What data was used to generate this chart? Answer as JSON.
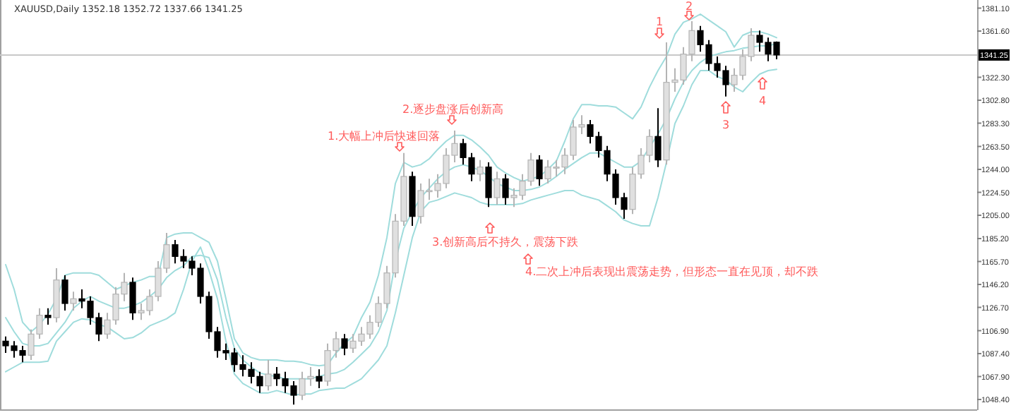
{
  "chart_data": {
    "type": "candlestick",
    "title": "XAUUSD,Daily  1352.18 1352.72 1337.66 1341.25",
    "tick_labels": "y",
    "ylim": [
      1040,
      1388
    ],
    "yticks": [
      {
        "value": 1381.1,
        "label": "1381.10"
      },
      {
        "value": 1361.6,
        "label": "1361.60"
      },
      {
        "value": 1322.3,
        "label": "1322.30"
      },
      {
        "value": 1302.8,
        "label": "1302.80"
      },
      {
        "value": 1283.3,
        "label": "1283.30"
      },
      {
        "value": 1263.5,
        "label": "1263.50"
      },
      {
        "value": 1244.0,
        "label": "1244.00"
      },
      {
        "value": 1224.5,
        "label": "1224.50"
      },
      {
        "value": 1205.0,
        "label": "1205.00"
      },
      {
        "value": 1185.2,
        "label": "1185.20"
      },
      {
        "value": 1165.7,
        "label": "1165.70"
      },
      {
        "value": 1146.2,
        "label": "1146.20"
      },
      {
        "value": 1126.7,
        "label": "1126.70"
      },
      {
        "value": 1106.9,
        "label": "1106.90"
      },
      {
        "value": 1087.4,
        "label": "1087.40"
      },
      {
        "value": 1067.9,
        "label": "1067.90"
      },
      {
        "value": 1048.4,
        "label": "1048.40"
      }
    ],
    "ref_lines": [
      {
        "axis": "y",
        "value": 1341.25,
        "label": "1341.25",
        "color": "#c8c8c8"
      }
    ],
    "categories": [
      null,
      null,
      null,
      null,
      null,
      null,
      null,
      null,
      null,
      null,
      null,
      null,
      null,
      null,
      null,
      null,
      null,
      null,
      null,
      null,
      null,
      null,
      null,
      null,
      null,
      null,
      null,
      null,
      null,
      null,
      null,
      null,
      null,
      null,
      null,
      null,
      null,
      null,
      null,
      null,
      null,
      null,
      null,
      null,
      null,
      null,
      null,
      null,
      null,
      null,
      null,
      null,
      null,
      null,
      null,
      null,
      null,
      null,
      null,
      null,
      null,
      null,
      null,
      null,
      null,
      null,
      null,
      null,
      null,
      null,
      null,
      null,
      null,
      null,
      null,
      null,
      null,
      null,
      null,
      null,
      null,
      null,
      null,
      null,
      null,
      null,
      null,
      null,
      null,
      null,
      null,
      null
    ],
    "ohlc": [
      [
        1098,
        1102,
        1088,
        1094
      ],
      [
        1094,
        1098,
        1084,
        1090
      ],
      [
        1090,
        1094,
        1080,
        1086
      ],
      [
        1086,
        1108,
        1082,
        1104
      ],
      [
        1104,
        1126,
        1100,
        1120
      ],
      [
        1120,
        1126,
        1112,
        1118
      ],
      [
        1118,
        1160,
        1114,
        1150
      ],
      [
        1150,
        1154,
        1124,
        1130
      ],
      [
        1130,
        1140,
        1124,
        1134
      ],
      [
        1134,
        1142,
        1126,
        1132
      ],
      [
        1132,
        1136,
        1112,
        1118
      ],
      [
        1118,
        1122,
        1098,
        1104
      ],
      [
        1104,
        1122,
        1100,
        1116
      ],
      [
        1116,
        1144,
        1112,
        1138
      ],
      [
        1138,
        1156,
        1132,
        1148
      ],
      [
        1148,
        1152,
        1116,
        1122
      ],
      [
        1122,
        1130,
        1116,
        1124
      ],
      [
        1124,
        1142,
        1120,
        1136
      ],
      [
        1136,
        1166,
        1132,
        1160
      ],
      [
        1160,
        1190,
        1156,
        1180
      ],
      [
        1180,
        1184,
        1164,
        1170
      ],
      [
        1170,
        1176,
        1160,
        1166
      ],
      [
        1166,
        1170,
        1154,
        1160
      ],
      [
        1160,
        1164,
        1130,
        1136
      ],
      [
        1136,
        1140,
        1100,
        1106
      ],
      [
        1106,
        1110,
        1084,
        1090
      ],
      [
        1090,
        1096,
        1082,
        1088
      ],
      [
        1088,
        1092,
        1072,
        1078
      ],
      [
        1078,
        1086,
        1068,
        1074
      ],
      [
        1074,
        1080,
        1062,
        1068
      ],
      [
        1068,
        1072,
        1054,
        1060
      ],
      [
        1060,
        1082,
        1056,
        1070
      ],
      [
        1070,
        1076,
        1060,
        1066
      ],
      [
        1066,
        1072,
        1054,
        1060
      ],
      [
        1060,
        1064,
        1044,
        1052
      ],
      [
        1052,
        1072,
        1048,
        1066
      ],
      [
        1066,
        1076,
        1060,
        1068
      ],
      [
        1068,
        1074,
        1058,
        1064
      ],
      [
        1064,
        1096,
        1060,
        1090
      ],
      [
        1090,
        1106,
        1084,
        1100
      ],
      [
        1100,
        1104,
        1086,
        1092
      ],
      [
        1092,
        1104,
        1088,
        1098
      ],
      [
        1098,
        1110,
        1094,
        1104
      ],
      [
        1104,
        1120,
        1100,
        1114
      ],
      [
        1114,
        1136,
        1110,
        1130
      ],
      [
        1130,
        1162,
        1126,
        1156
      ],
      [
        1156,
        1206,
        1152,
        1200
      ],
      [
        1200,
        1258,
        1196,
        1238
      ],
      [
        1238,
        1242,
        1196,
        1204
      ],
      [
        1204,
        1232,
        1198,
        1226
      ],
      [
        1226,
        1236,
        1218,
        1226
      ],
      [
        1226,
        1240,
        1220,
        1232
      ],
      [
        1232,
        1262,
        1228,
        1256
      ],
      [
        1256,
        1277,
        1250,
        1266
      ],
      [
        1266,
        1270,
        1248,
        1254
      ],
      [
        1254,
        1258,
        1234,
        1240
      ],
      [
        1240,
        1252,
        1234,
        1246
      ],
      [
        1246,
        1250,
        1212,
        1220
      ],
      [
        1220,
        1242,
        1214,
        1236
      ],
      [
        1236,
        1240,
        1214,
        1220
      ],
      [
        1220,
        1228,
        1212,
        1222
      ],
      [
        1222,
        1240,
        1218,
        1234
      ],
      [
        1234,
        1258,
        1230,
        1252
      ],
      [
        1252,
        1256,
        1230,
        1236
      ],
      [
        1236,
        1252,
        1232,
        1246
      ],
      [
        1246,
        1252,
        1238,
        1246
      ],
      [
        1246,
        1262,
        1240,
        1256
      ],
      [
        1256,
        1286,
        1252,
        1280
      ],
      [
        1280,
        1290,
        1274,
        1282
      ],
      [
        1282,
        1286,
        1266,
        1272
      ],
      [
        1272,
        1276,
        1254,
        1260
      ],
      [
        1260,
        1264,
        1234,
        1240
      ],
      [
        1240,
        1244,
        1214,
        1220
      ],
      [
        1220,
        1224,
        1202,
        1210
      ],
      [
        1210,
        1246,
        1206,
        1240
      ],
      [
        1240,
        1262,
        1236,
        1256
      ],
      [
        1256,
        1278,
        1250,
        1272
      ],
      [
        1272,
        1296,
        1246,
        1252
      ],
      [
        1252,
        1352,
        1248,
        1318
      ],
      [
        1318,
        1330,
        1310,
        1320
      ],
      [
        1320,
        1348,
        1316,
        1342
      ],
      [
        1342,
        1370,
        1336,
        1362
      ],
      [
        1362,
        1366,
        1344,
        1350
      ],
      [
        1350,
        1354,
        1328,
        1334
      ],
      [
        1334,
        1340,
        1322,
        1328
      ],
      [
        1328,
        1332,
        1306,
        1316
      ],
      [
        1316,
        1330,
        1310,
        1324
      ],
      [
        1324,
        1346,
        1320,
        1340
      ],
      [
        1340,
        1364,
        1336,
        1358
      ],
      [
        1358,
        1362,
        1344,
        1352
      ],
      [
        1352,
        1356,
        1336,
        1342
      ],
      [
        1352.18,
        1352.72,
        1337.66,
        1341.25
      ]
    ],
    "series": [
      {
        "type": "line",
        "color": "#9fdcdc",
        "values": [
          1163,
          1142,
          1114,
          1106,
          1112,
          1121,
          1134,
          1154,
          1156,
          1156,
          1156,
          1154,
          1148,
          1142,
          1145,
          1148,
          1150,
          1153,
          1153,
          1186,
          1189,
          1190,
          1190,
          1186,
          1182,
          1166,
          1134,
          1100,
          1088,
          1084,
          1082,
          1082,
          1082,
          1081,
          1081,
          1080,
          1078,
          1077,
          1078,
          1088,
          1096,
          1102,
          1118,
          1131,
          1154,
          1186,
          1232,
          1250,
          1246,
          1248,
          1253,
          1261,
          1268,
          1273,
          1273,
          1269,
          1263,
          1256,
          1246,
          1241,
          1237,
          1234,
          1236,
          1238,
          1244,
          1251,
          1268,
          1287,
          1299,
          1299,
          1298,
          1298,
          1297,
          1292,
          1287,
          1297,
          1314,
          1328,
          1340,
          1359,
          1369,
          1372,
          1376,
          1371,
          1366,
          1361,
          1348,
          1358,
          1361,
          1361,
          1359,
          1356
        ]
      },
      {
        "type": "line",
        "color": "#9fdcdc",
        "values": [
          1118,
          1106,
          1096,
          1094,
          1094,
          1096,
          1105,
          1114,
          1126,
          1132,
          1136,
          1132,
          1129,
          1126,
          1126,
          1128,
          1131,
          1136,
          1142,
          1152,
          1158,
          1162,
          1170,
          1171,
          1169,
          1150,
          1118,
          1092,
          1082,
          1076,
          1071,
          1069,
          1068,
          1066,
          1066,
          1066,
          1066,
          1068,
          1070,
          1071,
          1074,
          1080,
          1087,
          1094,
          1106,
          1124,
          1166,
          1194,
          1208,
          1220,
          1228,
          1236,
          1242,
          1246,
          1248,
          1246,
          1243,
          1238,
          1232,
          1229,
          1226,
          1226,
          1227,
          1229,
          1233,
          1238,
          1244,
          1249,
          1254,
          1258,
          1258,
          1254,
          1250,
          1246,
          1246,
          1251,
          1263,
          1274,
          1287,
          1304,
          1318,
          1328,
          1335,
          1340,
          1342,
          1344,
          1345,
          1347,
          1348,
          1349,
          1349,
          1351
        ]
      },
      {
        "type": "line",
        "color": "#9fdcdc",
        "values": [
          1072,
          1076,
          1080,
          1080,
          1080,
          1081,
          1098,
          1106,
          1114,
          1117,
          1116,
          1112,
          1110,
          1105,
          1100,
          1101,
          1105,
          1111,
          1114,
          1117,
          1122,
          1142,
          1166,
          1178,
          1158,
          1134,
          1098,
          1070,
          1062,
          1058,
          1054,
          1054,
          1056,
          1054,
          1052,
          1053,
          1053,
          1056,
          1057,
          1058,
          1058,
          1062,
          1066,
          1074,
          1082,
          1094,
          1122,
          1154,
          1186,
          1208,
          1216,
          1218,
          1221,
          1224,
          1222,
          1220,
          1216,
          1214,
          1214,
          1214,
          1214,
          1215,
          1218,
          1220,
          1222,
          1224,
          1226,
          1226,
          1222,
          1220,
          1218,
          1213,
          1208,
          1201,
          1198,
          1196,
          1196,
          1220,
          1250,
          1283,
          1298,
          1316,
          1328,
          1328,
          1323,
          1320,
          1314,
          1310,
          1318,
          1325,
          1328,
          1329
        ]
      }
    ],
    "annotations": [
      "1.大幅上冲后快速回落",
      "2.逐步盘涨后创新高",
      "3.创新高后不持久，震荡下跌",
      "4.二次上冲后表现出震荡走势，但形态一直在见顶，却不跌",
      "1",
      "2",
      "3",
      "4"
    ]
  }
}
